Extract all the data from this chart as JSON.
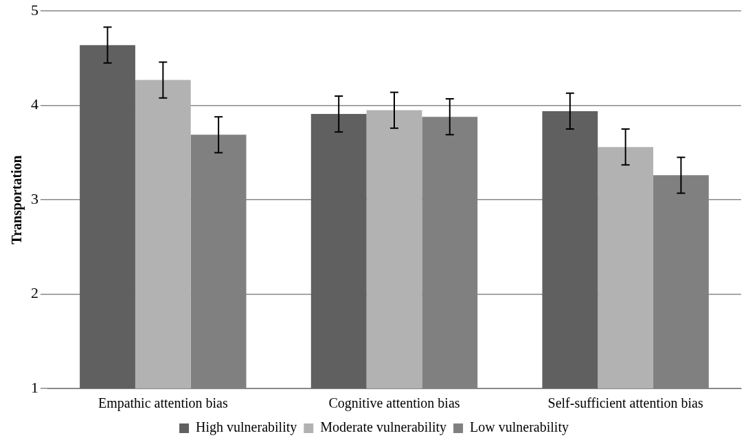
{
  "chart_data": {
    "type": "bar",
    "ylabel": "Transportation",
    "categories": [
      "Empathic attention bias",
      "Cognitive attention bias",
      "Self-sufficient attention bias"
    ],
    "series": [
      {
        "name": "High vulnerability",
        "color": "#606060",
        "values": [
          4.64,
          3.91,
          3.94
        ],
        "errors": [
          0.19,
          0.19,
          0.19
        ]
      },
      {
        "name": "Moderate vulnerability",
        "color": "#b2b2b2",
        "values": [
          4.27,
          3.95,
          3.56
        ],
        "errors": [
          0.19,
          0.19,
          0.19
        ]
      },
      {
        "name": "Low vulnerability",
        "color": "#808080",
        "values": [
          3.69,
          3.88,
          3.26
        ],
        "errors": [
          0.19,
          0.19,
          0.19
        ]
      }
    ],
    "ylim": [
      1,
      5
    ],
    "yticks": [
      1,
      2,
      3,
      4,
      5
    ],
    "grid": "y",
    "legend": "bottom"
  }
}
